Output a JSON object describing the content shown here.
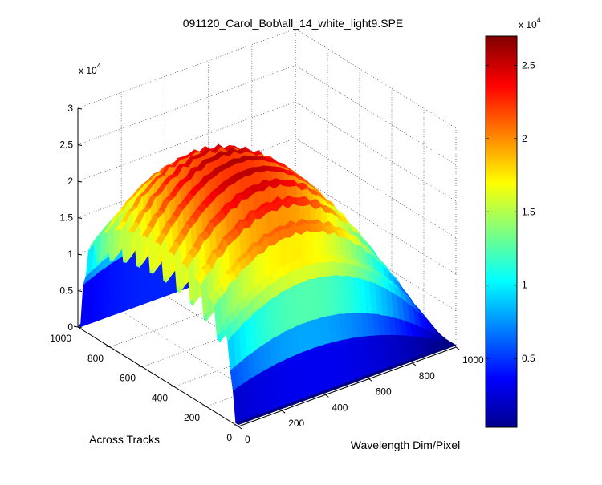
{
  "chart_data": {
    "type": "surface",
    "title": "091120_Carol_Bob\\all_14_white_light9.SPE",
    "xlabel": "Wavelength Dim/Pixel",
    "ylabel": "Across Tracks",
    "zlabel": "",
    "x_ticks": [
      "0",
      "200",
      "400",
      "600",
      "800",
      "1000"
    ],
    "y_ticks": [
      "0",
      "200",
      "400",
      "600",
      "800",
      "1000"
    ],
    "z_ticks": [
      "0",
      "0.5",
      "1",
      "1.5",
      "2",
      "2.5",
      "3"
    ],
    "z_exponent": "x 10",
    "z_exponent_power": "4",
    "xlim": [
      0,
      1000
    ],
    "ylim": [
      0,
      1000
    ],
    "zlim": [
      0,
      30000
    ],
    "grid": true,
    "colormap": "jet",
    "colorbar": {
      "ticks": [
        "0.5",
        "1",
        "1.5",
        "2",
        "2.5"
      ],
      "tick_values": [
        5000,
        10000,
        15000,
        20000,
        25000
      ],
      "range": [
        300,
        27000
      ],
      "exponent": "x 10",
      "exponent_power": "4",
      "placement": "right"
    },
    "surface_profile": {
      "peak_value": 26000,
      "wavelength_peak_pixel": 350,
      "wavelength_falloff_pixels": 650,
      "track_band_edges": [
        30,
        980
      ],
      "stripe_count": 12,
      "stripe_depth": 0.35
    }
  }
}
